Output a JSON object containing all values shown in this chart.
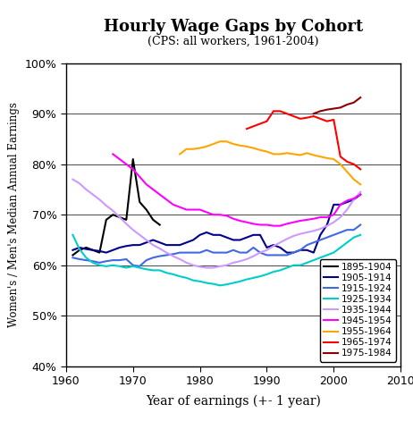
{
  "title": "Hourly Wage Gaps by Cohort",
  "subtitle": "(CPS: all workers, 1961-2004)",
  "xlabel": "Year of earnings (+- 1 year)",
  "ylabel": "Women's / Men's Median Annual Earnings",
  "xlim": [
    1960,
    2010
  ],
  "ylim": [
    0.4,
    1.0
  ],
  "yticks": [
    0.4,
    0.5,
    0.6,
    0.7,
    0.8,
    0.9,
    1.0
  ],
  "xticks": [
    1960,
    1970,
    1980,
    1990,
    2000,
    2010
  ],
  "series": {
    "1895-1904": {
      "color": "#000000",
      "x": [
        1961,
        1962,
        1963,
        1964,
        1965,
        1966,
        1967,
        1968,
        1969,
        1970,
        1971,
        1972,
        1973,
        1974
      ],
      "y": [
        0.62,
        0.63,
        0.635,
        0.63,
        0.625,
        0.69,
        0.7,
        0.695,
        0.69,
        0.81,
        0.725,
        0.71,
        0.69,
        0.68
      ]
    },
    "1905-1914": {
      "color": "#00008B",
      "x": [
        1961,
        1962,
        1963,
        1964,
        1965,
        1966,
        1967,
        1968,
        1969,
        1970,
        1971,
        1972,
        1973,
        1974,
        1975,
        1976,
        1977,
        1978,
        1979,
        1980,
        1981,
        1982,
        1983,
        1984,
        1985,
        1986,
        1987,
        1988,
        1989,
        1990,
        1991,
        1992,
        1993,
        1994,
        1995,
        1996,
        1997,
        1998,
        1999,
        2000,
        2001,
        2002,
        2003,
        2004
      ],
      "y": [
        0.63,
        0.635,
        0.632,
        0.63,
        0.628,
        0.625,
        0.63,
        0.635,
        0.638,
        0.64,
        0.64,
        0.645,
        0.65,
        0.645,
        0.64,
        0.64,
        0.64,
        0.645,
        0.65,
        0.66,
        0.665,
        0.66,
        0.66,
        0.655,
        0.65,
        0.65,
        0.655,
        0.66,
        0.66,
        0.635,
        0.64,
        0.635,
        0.625,
        0.625,
        0.63,
        0.63,
        0.625,
        0.66,
        0.68,
        0.72,
        0.72,
        0.725,
        0.73,
        0.74
      ]
    },
    "1915-1924": {
      "color": "#4169E1",
      "x": [
        1961,
        1962,
        1963,
        1964,
        1965,
        1966,
        1967,
        1968,
        1969,
        1970,
        1971,
        1972,
        1973,
        1974,
        1975,
        1976,
        1977,
        1978,
        1979,
        1980,
        1981,
        1982,
        1983,
        1984,
        1985,
        1986,
        1987,
        1988,
        1989,
        1990,
        1991,
        1992,
        1993,
        1994,
        1995,
        1996,
        1997,
        1998,
        1999,
        2000,
        2001,
        2002,
        2003,
        2004
      ],
      "y": [
        0.615,
        0.612,
        0.61,
        0.608,
        0.605,
        0.608,
        0.61,
        0.61,
        0.612,
        0.6,
        0.598,
        0.61,
        0.615,
        0.618,
        0.62,
        0.622,
        0.625,
        0.625,
        0.625,
        0.625,
        0.63,
        0.625,
        0.625,
        0.625,
        0.63,
        0.625,
        0.625,
        0.635,
        0.625,
        0.62,
        0.62,
        0.62,
        0.62,
        0.625,
        0.63,
        0.64,
        0.645,
        0.65,
        0.655,
        0.66,
        0.665,
        0.67,
        0.67,
        0.68
      ]
    },
    "1925-1934": {
      "color": "#00CCCC",
      "x": [
        1961,
        1962,
        1963,
        1964,
        1965,
        1966,
        1967,
        1968,
        1969,
        1970,
        1971,
        1972,
        1973,
        1974,
        1975,
        1976,
        1977,
        1978,
        1979,
        1980,
        1981,
        1982,
        1983,
        1984,
        1985,
        1986,
        1987,
        1988,
        1989,
        1990,
        1991,
        1992,
        1993,
        1994,
        1995,
        1996,
        1997,
        1998,
        1999,
        2000,
        2001,
        2002,
        2003,
        2004
      ],
      "y": [
        0.66,
        0.632,
        0.615,
        0.605,
        0.6,
        0.598,
        0.6,
        0.598,
        0.595,
        0.598,
        0.595,
        0.592,
        0.59,
        0.59,
        0.585,
        0.582,
        0.578,
        0.575,
        0.57,
        0.568,
        0.565,
        0.563,
        0.56,
        0.562,
        0.565,
        0.568,
        0.572,
        0.575,
        0.578,
        0.582,
        0.587,
        0.59,
        0.595,
        0.6,
        0.6,
        0.605,
        0.61,
        0.615,
        0.62,
        0.625,
        0.635,
        0.645,
        0.655,
        0.66
      ]
    },
    "1935-1944": {
      "color": "#CC99FF",
      "x": [
        1961,
        1962,
        1963,
        1964,
        1965,
        1966,
        1967,
        1968,
        1969,
        1970,
        1971,
        1972,
        1973,
        1974,
        1975,
        1976,
        1977,
        1978,
        1979,
        1980,
        1981,
        1982,
        1983,
        1984,
        1985,
        1986,
        1987,
        1988,
        1989,
        1990,
        1991,
        1992,
        1993,
        1994,
        1995,
        1996,
        1997,
        1998,
        1999,
        2000,
        2001,
        2002,
        2003,
        2004
      ],
      "y": [
        0.77,
        0.762,
        0.75,
        0.74,
        0.73,
        0.718,
        0.708,
        0.695,
        0.682,
        0.67,
        0.66,
        0.65,
        0.64,
        0.633,
        0.625,
        0.618,
        0.612,
        0.605,
        0.6,
        0.597,
        0.595,
        0.595,
        0.598,
        0.6,
        0.605,
        0.608,
        0.612,
        0.618,
        0.625,
        0.63,
        0.638,
        0.645,
        0.652,
        0.658,
        0.662,
        0.665,
        0.668,
        0.672,
        0.678,
        0.685,
        0.695,
        0.71,
        0.73,
        0.745
      ]
    },
    "1945-1954": {
      "color": "#FF00FF",
      "x": [
        1967,
        1968,
        1969,
        1970,
        1971,
        1972,
        1973,
        1974,
        1975,
        1976,
        1977,
        1978,
        1979,
        1980,
        1981,
        1982,
        1983,
        1984,
        1985,
        1986,
        1987,
        1988,
        1989,
        1990,
        1991,
        1992,
        1993,
        1994,
        1995,
        1996,
        1997,
        1998,
        1999,
        2000,
        2001,
        2002,
        2003,
        2004
      ],
      "y": [
        0.82,
        0.81,
        0.8,
        0.79,
        0.775,
        0.76,
        0.75,
        0.74,
        0.73,
        0.72,
        0.715,
        0.71,
        0.71,
        0.71,
        0.705,
        0.7,
        0.7,
        0.698,
        0.692,
        0.688,
        0.685,
        0.682,
        0.68,
        0.68,
        0.678,
        0.678,
        0.682,
        0.685,
        0.688,
        0.69,
        0.692,
        0.695,
        0.695,
        0.7,
        0.72,
        0.728,
        0.732,
        0.74
      ]
    },
    "1955-1964": {
      "color": "#FFA500",
      "x": [
        1977,
        1978,
        1979,
        1980,
        1981,
        1982,
        1983,
        1984,
        1985,
        1986,
        1987,
        1988,
        1989,
        1990,
        1991,
        1992,
        1993,
        1994,
        1995,
        1996,
        1997,
        1998,
        1999,
        2000,
        2001,
        2002,
        2003,
        2004
      ],
      "y": [
        0.82,
        0.83,
        0.83,
        0.832,
        0.835,
        0.84,
        0.845,
        0.845,
        0.84,
        0.837,
        0.835,
        0.832,
        0.828,
        0.825,
        0.82,
        0.82,
        0.822,
        0.82,
        0.818,
        0.822,
        0.818,
        0.815,
        0.812,
        0.81,
        0.8,
        0.785,
        0.77,
        0.76
      ]
    },
    "1965-1974": {
      "color": "#FF0000",
      "x": [
        1987,
        1988,
        1989,
        1990,
        1991,
        1992,
        1993,
        1994,
        1995,
        1996,
        1997,
        1998,
        1999,
        2000,
        2001,
        2002,
        2003,
        2004
      ],
      "y": [
        0.87,
        0.875,
        0.88,
        0.885,
        0.905,
        0.905,
        0.9,
        0.895,
        0.89,
        0.892,
        0.895,
        0.89,
        0.885,
        0.888,
        0.815,
        0.805,
        0.8,
        0.79
      ]
    },
    "1975-1984": {
      "color": "#8B0000",
      "x": [
        1997,
        1998,
        1999,
        2000,
        2001,
        2002,
        2003,
        2004
      ],
      "y": [
        0.9,
        0.905,
        0.908,
        0.91,
        0.912,
        0.918,
        0.922,
        0.932
      ]
    }
  }
}
